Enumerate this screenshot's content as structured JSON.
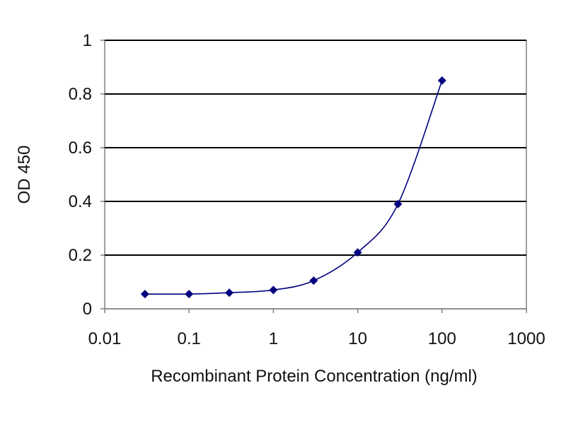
{
  "chart_data": {
    "type": "scatter",
    "title": "",
    "xlabel": "Recombinant Protein Concentration (ng/ml)",
    "ylabel": "OD 450",
    "x_scale": "log",
    "xlim": [
      0.01,
      1000
    ],
    "ylim": [
      0,
      1
    ],
    "x_ticks": [
      0.01,
      0.1,
      1,
      10,
      100,
      1000
    ],
    "x_tick_labels": [
      "0.01",
      "0.1",
      "1",
      "10",
      "100",
      "1000"
    ],
    "y_ticks": [
      0,
      0.2,
      0.4,
      0.6,
      0.8,
      1
    ],
    "y_tick_labels": [
      "0",
      "0.2",
      "0.4",
      "0.6",
      "0.8",
      "1"
    ],
    "grid": "horizontal",
    "legend": "none",
    "series": [
      {
        "x": [
          0.03,
          0.1,
          0.3,
          1,
          3,
          10,
          30,
          100
        ],
        "y": [
          0.055,
          0.055,
          0.06,
          0.07,
          0.105,
          0.21,
          0.39,
          0.85
        ],
        "marker": "diamond",
        "color": "#000080",
        "curve": "smooth"
      }
    ]
  }
}
